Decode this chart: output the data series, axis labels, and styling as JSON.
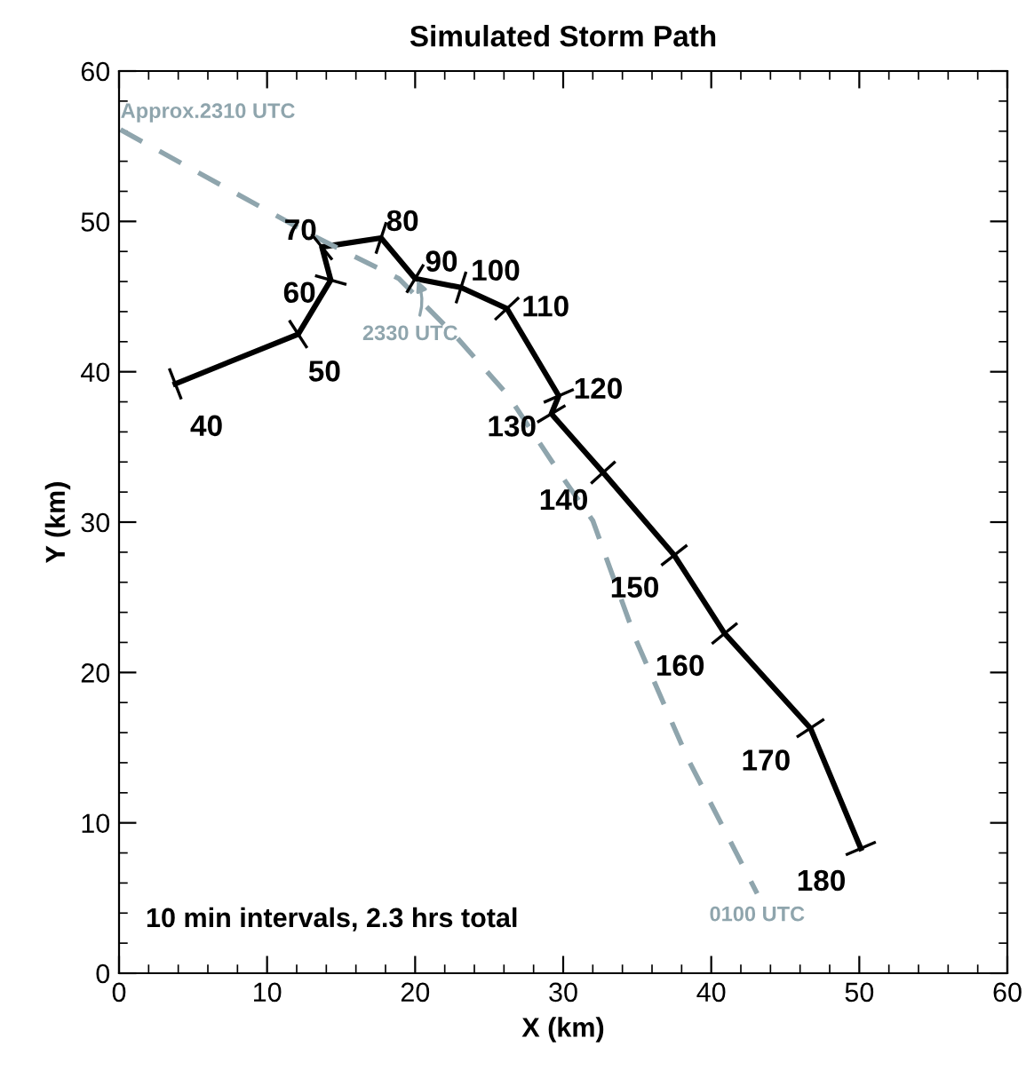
{
  "chart_data": {
    "type": "line",
    "title": "Simulated Storm Path",
    "xlabel": "X (km)",
    "ylabel": "Y (km)",
    "xlim": [
      0,
      60
    ],
    "ylim": [
      0,
      60
    ],
    "xticks": [
      0,
      {
        "value": 2,
        "label": null
      },
      {
        "value": 4,
        "label": null
      },
      {
        "value": 6,
        "label": null
      },
      {
        "value": 8,
        "label": null
      },
      10,
      {
        "value": 12,
        "label": null
      },
      {
        "value": 14,
        "label": null
      },
      {
        "value": 16,
        "label": null
      },
      {
        "value": 18,
        "label": null
      },
      20,
      {
        "value": 22,
        "label": null
      },
      {
        "value": 24,
        "label": null
      },
      {
        "value": 26,
        "label": null
      },
      {
        "value": 28,
        "label": null
      },
      30,
      {
        "value": 32,
        "label": null
      },
      {
        "value": 34,
        "label": null
      },
      {
        "value": 36,
        "label": null
      },
      {
        "value": 38,
        "label": null
      },
      40,
      {
        "value": 42,
        "label": null
      },
      {
        "value": 44,
        "label": null
      },
      {
        "value": 46,
        "label": null
      },
      {
        "value": 48,
        "label": null
      },
      50,
      {
        "value": 52,
        "label": null
      },
      {
        "value": 54,
        "label": null
      },
      {
        "value": 56,
        "label": null
      },
      {
        "value": 58,
        "label": null
      },
      60
    ],
    "yticks": [
      0,
      {
        "value": 2,
        "label": null
      },
      {
        "value": 4,
        "label": null
      },
      {
        "value": 6,
        "label": null
      },
      {
        "value": 8,
        "label": null
      },
      10,
      {
        "value": 12,
        "label": null
      },
      {
        "value": 14,
        "label": null
      },
      {
        "value": 16,
        "label": null
      },
      {
        "value": 18,
        "label": null
      },
      20,
      {
        "value": 22,
        "label": null
      },
      {
        "value": 24,
        "label": null
      },
      {
        "value": 26,
        "label": null
      },
      {
        "value": 28,
        "label": null
      },
      30,
      {
        "value": 32,
        "label": null
      },
      {
        "value": 34,
        "label": null
      },
      {
        "value": 36,
        "label": null
      },
      {
        "value": 38,
        "label": null
      },
      40,
      {
        "value": 42,
        "label": null
      },
      {
        "value": 44,
        "label": null
      },
      {
        "value": 46,
        "label": null
      },
      {
        "value": 48,
        "label": null
      },
      50,
      {
        "value": 52,
        "label": null
      },
      {
        "value": 54,
        "label": null
      },
      {
        "value": 56,
        "label": null
      },
      {
        "value": 58,
        "label": null
      },
      60
    ],
    "grid": false,
    "legend": false,
    "series": [
      {
        "color": "#000000",
        "line_style": "solid",
        "marker": "cross",
        "x": [
          3.8,
          12.1,
          14.3,
          13.7,
          17.7,
          20.0,
          23.1,
          26.2,
          29.7,
          29.2,
          32.7,
          37.5,
          40.9,
          46.7,
          50.1
        ],
        "values": [
          39.2,
          42.5,
          46.1,
          48.3,
          48.9,
          46.2,
          45.6,
          44.2,
          38.4,
          37.2,
          33.3,
          27.8,
          22.6,
          16.3,
          8.3
        ]
      },
      {
        "color": "#8fa5ad",
        "line_style": "dashed",
        "x": [
          0.1,
          13.0,
          18.9,
          22.8,
          26.3,
          29.8,
          32.0,
          34.9,
          38.4,
          43.1
        ],
        "values": [
          56.1,
          49.1,
          46.2,
          42.3,
          38.4,
          33.2,
          30.1,
          22.2,
          14.3,
          5.3
        ]
      }
    ],
    "annotations": [
      {
        "text": "40",
        "x": 3.8,
        "y": 39.2
      },
      {
        "text": "50",
        "x": 12.1,
        "y": 42.5
      },
      {
        "text": "60",
        "x": 14.3,
        "y": 46.1
      },
      {
        "text": "70",
        "x": 13.7,
        "y": 48.3
      },
      {
        "text": "80",
        "x": 17.7,
        "y": 48.9
      },
      {
        "text": "90",
        "x": 20.0,
        "y": 46.2
      },
      {
        "text": "100",
        "x": 23.1,
        "y": 45.6
      },
      {
        "text": "110",
        "x": 26.2,
        "y": 44.2
      },
      {
        "text": "120",
        "x": 29.7,
        "y": 38.4
      },
      {
        "text": "130",
        "x": 29.2,
        "y": 37.2
      },
      {
        "text": "140",
        "x": 32.7,
        "y": 33.3
      },
      {
        "text": "150",
        "x": 37.5,
        "y": 27.8
      },
      {
        "text": "160",
        "x": 40.9,
        "y": 22.6
      },
      {
        "text": "170",
        "x": 46.7,
        "y": 16.3
      },
      {
        "text": "180",
        "x": 50.1,
        "y": 8.3
      },
      {
        "text": "Approx.2310 UTC",
        "x": 0.1,
        "y": 56.1
      },
      {
        "text": "2330 UTC",
        "x": 20.0,
        "y": 46.4
      },
      {
        "text": "0100 UTC",
        "x": 43.1,
        "y": 5.3
      },
      "10 min intervals, 2.3 hrs total"
    ]
  }
}
